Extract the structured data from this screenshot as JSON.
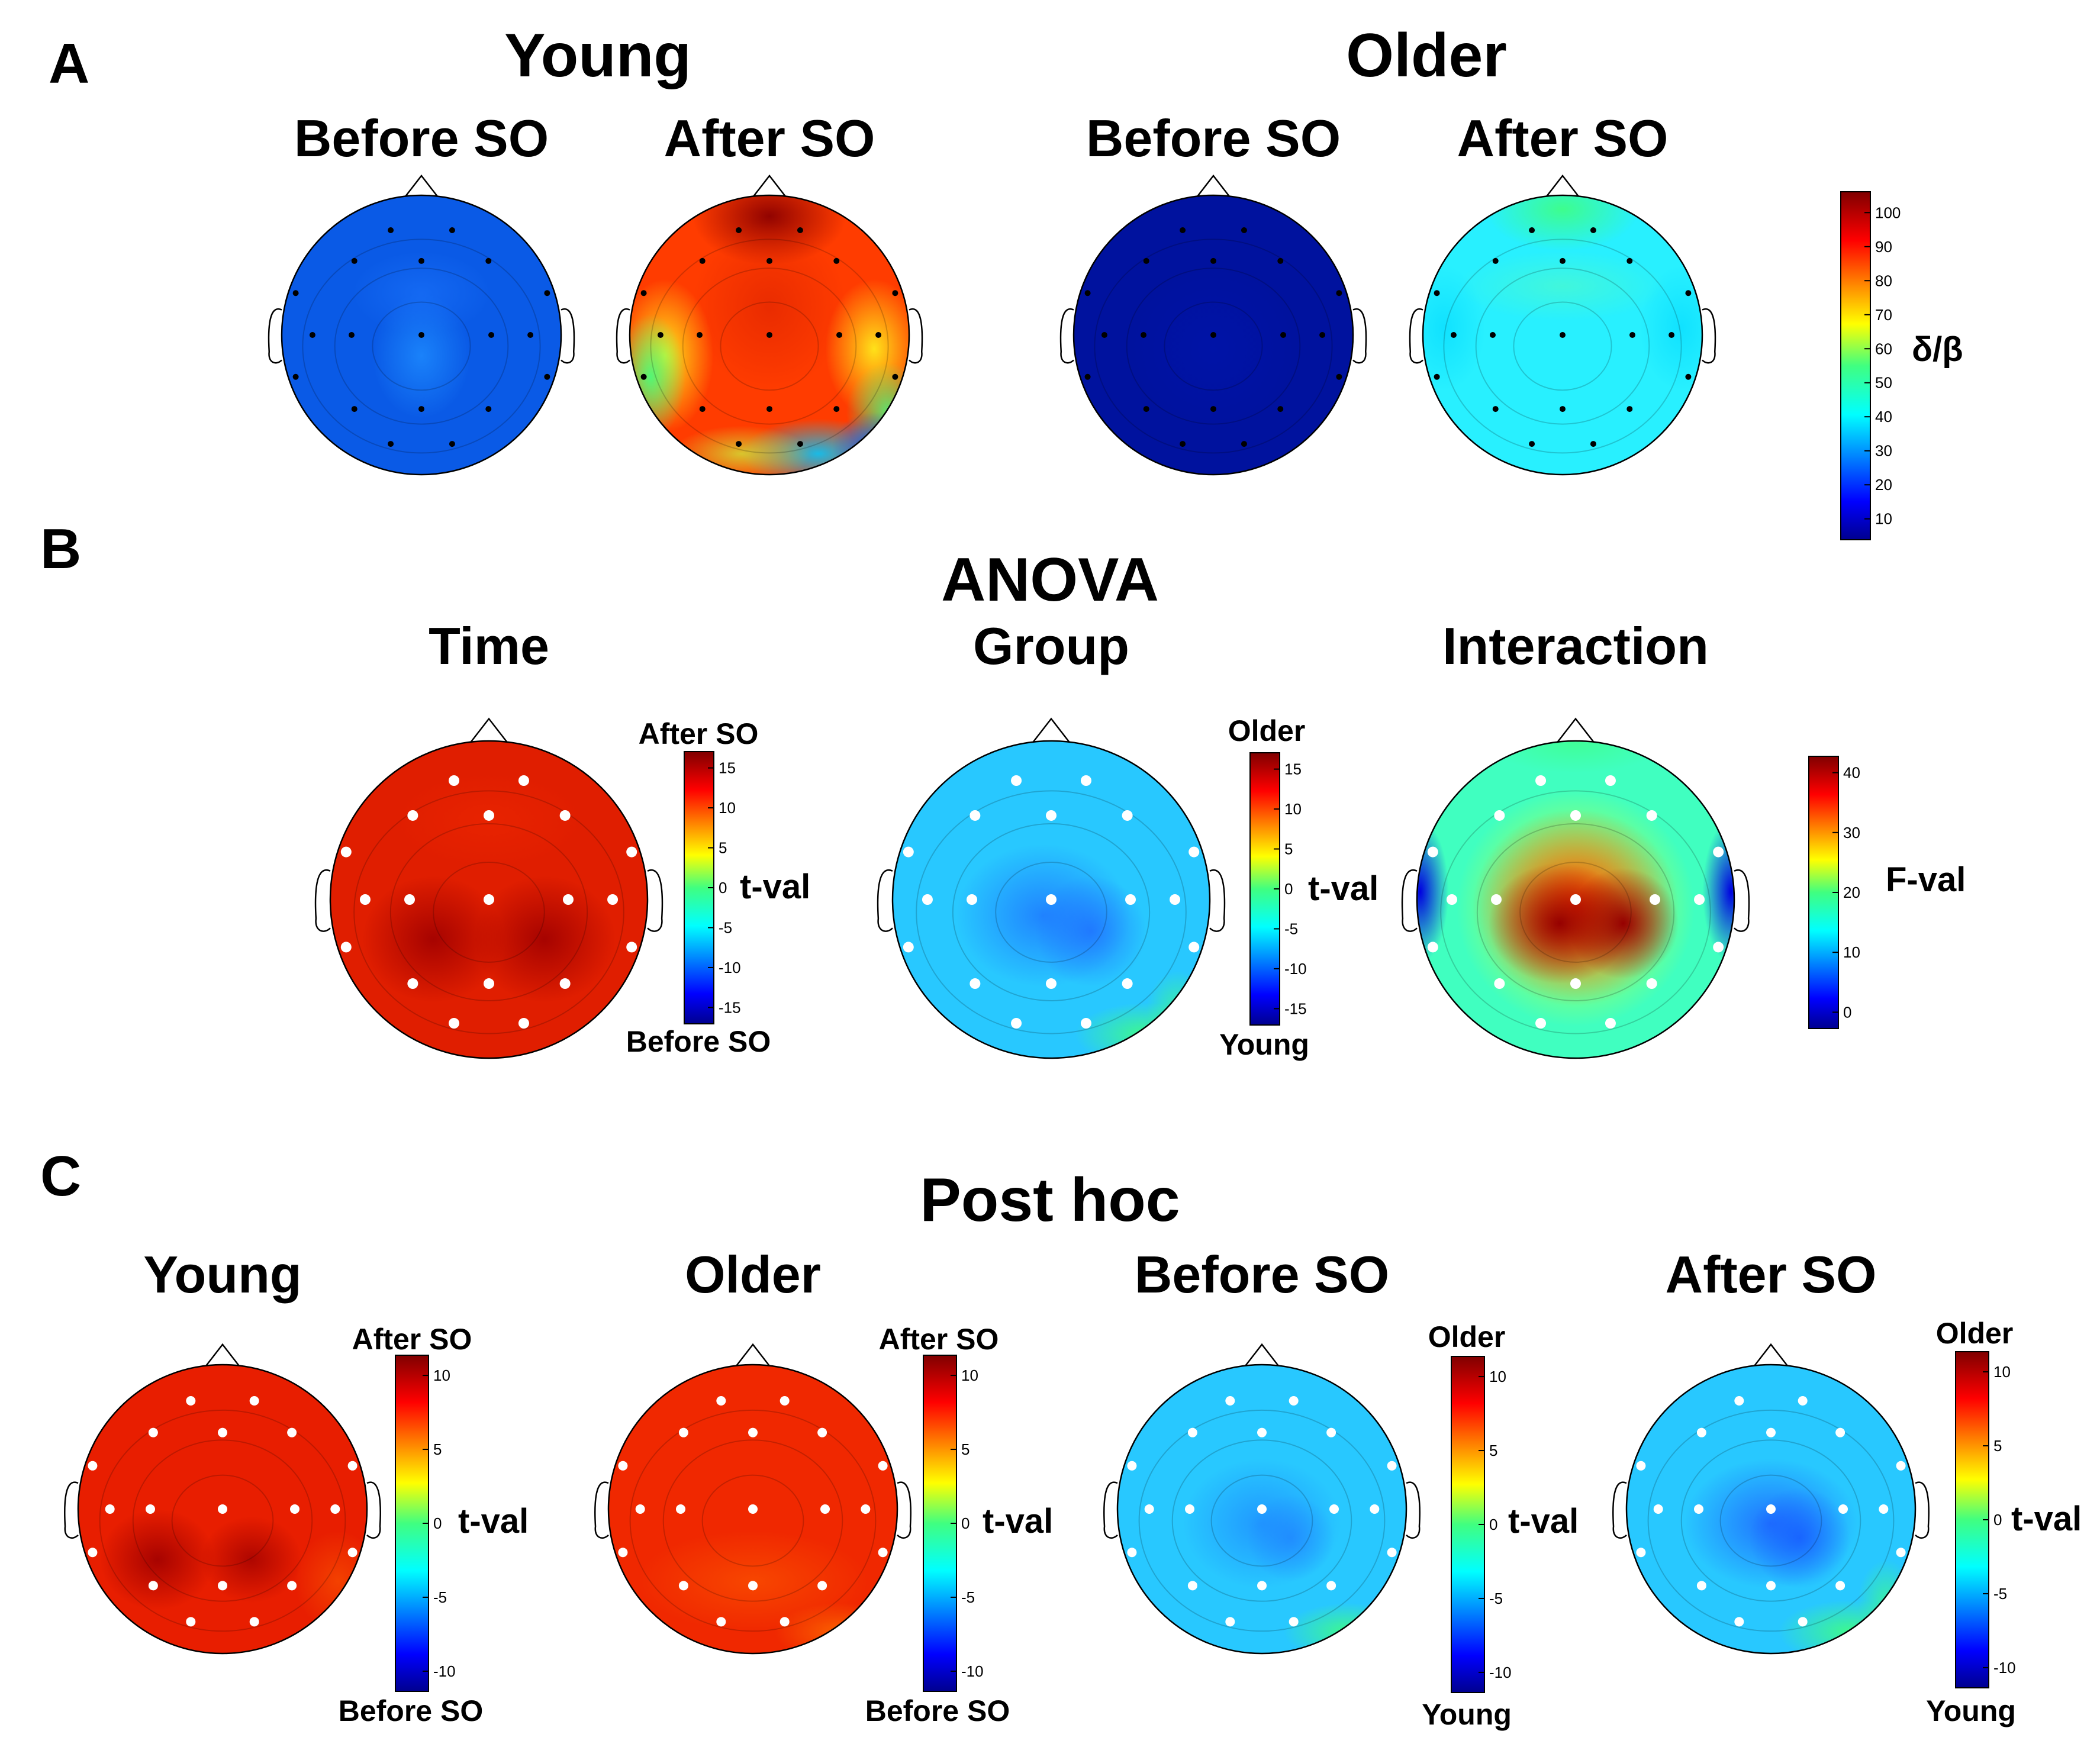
{
  "panels": {
    "A": {
      "letter": "A",
      "groups": [
        {
          "title": "Young",
          "maps": [
            "Before SO",
            "After SO"
          ]
        },
        {
          "title": "Older",
          "maps": [
            "Before SO",
            "After SO"
          ]
        }
      ],
      "colorbar": {
        "label": "δ/β",
        "ticks": [
          "100",
          "90",
          "80",
          "70",
          "60",
          "50",
          "40",
          "30",
          "20",
          "10"
        ]
      }
    },
    "B": {
      "letter": "B",
      "title": "ANOVA",
      "maps": [
        {
          "title": "Time",
          "top": "After SO",
          "bottom": "Before SO",
          "label": "t-val",
          "ticks": [
            "15",
            "10",
            "5",
            "0",
            "-5",
            "-10",
            "-15"
          ]
        },
        {
          "title": "Group",
          "top": "Older",
          "bottom": "Young",
          "label": "t-val",
          "ticks": [
            "15",
            "10",
            "5",
            "0",
            "-5",
            "-10",
            "-15"
          ]
        },
        {
          "title": "Interaction",
          "label": "F-val",
          "ticks": [
            "40",
            "30",
            "20",
            "10",
            "0"
          ]
        }
      ]
    },
    "C": {
      "letter": "C",
      "title": "Post hoc",
      "maps": [
        {
          "title": "Young",
          "top": "After SO",
          "bottom": "Before SO",
          "label": "t-val",
          "ticks": [
            "10",
            "5",
            "0",
            "-5",
            "-10"
          ]
        },
        {
          "title": "Older",
          "top": "After SO",
          "bottom": "Before SO",
          "label": "t-val",
          "ticks": [
            "10",
            "5",
            "0",
            "-5",
            "-10"
          ]
        },
        {
          "title": "Before SO",
          "top": "Older",
          "bottom": "Young",
          "label": "t-val",
          "ticks": [
            "10",
            "5",
            "0",
            "-5",
            "-10"
          ]
        },
        {
          "title": "After SO",
          "top": "Older",
          "bottom": "Young",
          "label": "t-val",
          "ticks": [
            "10",
            "5",
            "0",
            "-5",
            "-10"
          ]
        }
      ]
    }
  },
  "colors": {
    "jet_dark_blue": "#00008f",
    "jet_dark_red": "#800000",
    "electrode_white": "#ffffff",
    "electrode_black": "#000000"
  }
}
